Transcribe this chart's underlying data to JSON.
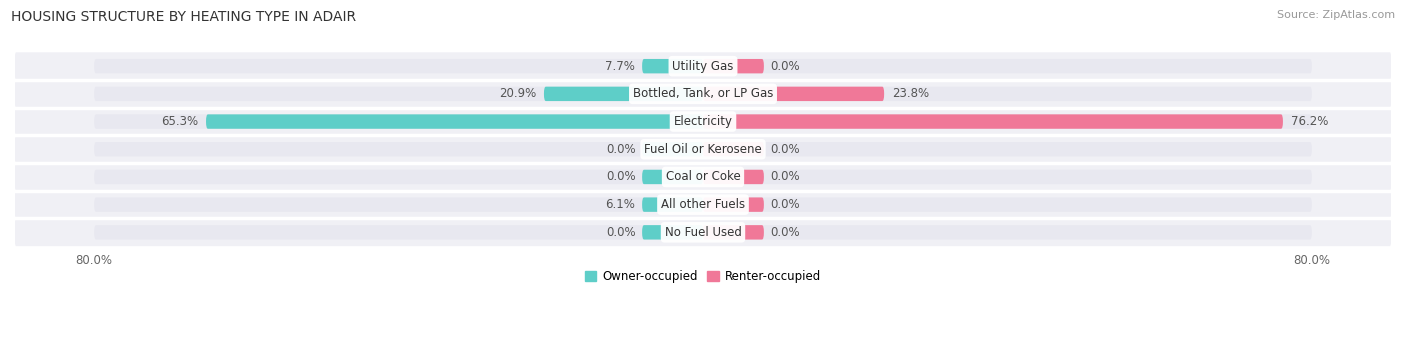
{
  "title": "HOUSING STRUCTURE BY HEATING TYPE IN ADAIR",
  "source": "Source: ZipAtlas.com",
  "categories": [
    "Utility Gas",
    "Bottled, Tank, or LP Gas",
    "Electricity",
    "Fuel Oil or Kerosene",
    "Coal or Coke",
    "All other Fuels",
    "No Fuel Used"
  ],
  "owner_values": [
    7.7,
    20.9,
    65.3,
    0.0,
    0.0,
    6.1,
    0.0
  ],
  "renter_values": [
    0.0,
    23.8,
    76.2,
    0.0,
    0.0,
    0.0,
    0.0
  ],
  "owner_color": "#5ecec8",
  "renter_color": "#f07898",
  "bar_bg_color": "#e8e8f0",
  "row_bg_color": "#f0f0f5",
  "axis_max": 80.0,
  "min_bar": 8.0,
  "title_fontsize": 10,
  "source_fontsize": 8,
  "label_fontsize": 8.5,
  "tick_fontsize": 8.5,
  "bar_height": 0.52,
  "figsize": [
    14.06,
    3.4
  ],
  "dpi": 100
}
